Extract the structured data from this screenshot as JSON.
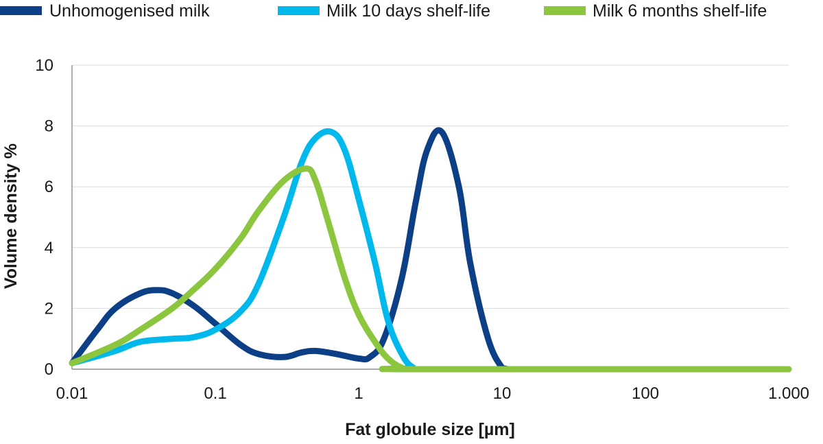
{
  "chart_data": {
    "type": "line",
    "xscale": "log",
    "xlabel": "Fat globule size [µm]",
    "ylabel": "Volume density %",
    "xlim": [
      0.01,
      1000
    ],
    "ylim": [
      0,
      10
    ],
    "xticks": [
      0.01,
      0.1,
      1,
      10,
      100,
      1000
    ],
    "xtick_labels": [
      "0.01",
      "0.1",
      "1",
      "10",
      "100",
      "1.000"
    ],
    "yticks": [
      0,
      2,
      4,
      6,
      8,
      10
    ],
    "ytick_labels": [
      "0",
      "2",
      "4",
      "6",
      "8",
      "10"
    ],
    "grid": "horizontal",
    "legend_position": "top",
    "series": [
      {
        "name": "Unhomogenised milk",
        "color": "#0d3f86",
        "x": [
          0.01,
          0.015,
          0.02,
          0.03,
          0.04,
          0.05,
          0.07,
          0.1,
          0.15,
          0.2,
          0.3,
          0.4,
          0.5,
          0.7,
          1.0,
          1.2,
          1.5,
          2.0,
          2.5,
          3.0,
          3.8,
          5.0,
          6.0,
          8.0,
          10.0,
          11.0
        ],
        "y": [
          0.2,
          1.3,
          2.0,
          2.5,
          2.6,
          2.5,
          2.1,
          1.5,
          0.8,
          0.5,
          0.4,
          0.55,
          0.6,
          0.5,
          0.35,
          0.4,
          1.0,
          3.0,
          5.5,
          7.2,
          7.8,
          6.0,
          3.5,
          1.0,
          0.05,
          0.0
        ]
      },
      {
        "name": "Milk 10 days shelf-life",
        "color": "#00b9ec",
        "x": [
          0.01,
          0.02,
          0.03,
          0.05,
          0.07,
          0.1,
          0.15,
          0.2,
          0.3,
          0.4,
          0.5,
          0.65,
          0.8,
          1.0,
          1.3,
          1.6,
          2.0,
          2.4,
          3.0,
          1000
        ],
        "y": [
          0.2,
          0.6,
          0.9,
          1.0,
          1.05,
          1.3,
          1.9,
          2.8,
          5.0,
          6.8,
          7.6,
          7.8,
          7.2,
          5.6,
          3.5,
          1.6,
          0.5,
          0.05,
          0.0,
          0.0
        ]
      },
      {
        "name": "Milk 6 months shelf-life",
        "color": "#8cc63f",
        "x": [
          0.01,
          0.02,
          0.03,
          0.05,
          0.07,
          0.1,
          0.15,
          0.2,
          0.3,
          0.43,
          0.5,
          0.6,
          0.8,
          1.0,
          1.3,
          1.6,
          2.0,
          2.5,
          1000
        ],
        "y": [
          0.2,
          0.8,
          1.3,
          2.0,
          2.6,
          3.3,
          4.3,
          5.2,
          6.2,
          6.6,
          6.2,
          5.0,
          3.0,
          1.8,
          0.9,
          0.35,
          0.05,
          0.0,
          0.0
        ]
      }
    ]
  }
}
